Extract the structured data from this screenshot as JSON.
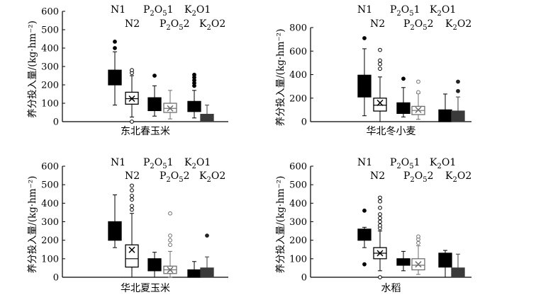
{
  "chart_data": [
    {
      "type": "box",
      "xlabel": "东北春玉米",
      "ylabel": "养分投入量/(kg·hm⁻²)",
      "ylim": [
        0,
        600
      ],
      "yticks": [
        0,
        100,
        200,
        300,
        400,
        500,
        600
      ],
      "grid": false,
      "series_labels": [
        {
          "id": "N1",
          "base": "N",
          "sub": "",
          "suffix": "1"
        },
        {
          "id": "N2",
          "base": "N",
          "sub": "",
          "suffix": "2"
        },
        {
          "id": "P2O51",
          "base": "P",
          "sub": "2",
          "mid": "O",
          "sub2": "5",
          "suffix": "1"
        },
        {
          "id": "P2O52",
          "base": "P",
          "sub": "2",
          "mid": "O",
          "sub2": "5",
          "suffix": "2"
        },
        {
          "id": "K2O1",
          "base": "K",
          "sub": "2",
          "mid": "O",
          "sub2": "",
          "suffix": "1"
        },
        {
          "id": "K2O2",
          "base": "K",
          "sub": "2",
          "mid": "O",
          "sub2": "",
          "suffix": "2"
        }
      ],
      "boxes": [
        {
          "series": "N1",
          "style": "solid-black",
          "q1": 200,
          "median": 225,
          "q3": 280,
          "whisker_low": 90,
          "whisker_high": 380,
          "mean": null,
          "outliers": [
            400,
            435
          ]
        },
        {
          "series": "N2",
          "style": "open",
          "q1": 95,
          "median": 125,
          "q3": 160,
          "whisker_low": 25,
          "whisker_high": 250,
          "mean": 125,
          "outliers": [
            265,
            280,
            0
          ]
        },
        {
          "series": "P2O51",
          "style": "solid-black",
          "q1": 60,
          "median": 90,
          "q3": 130,
          "whisker_low": 30,
          "whisker_high": 195,
          "mean": null,
          "outliers": [
            250
          ]
        },
        {
          "series": "P2O52",
          "style": "open-gray",
          "q1": 50,
          "median": 72,
          "q3": 100,
          "whisker_low": 15,
          "whisker_high": 170,
          "mean": 72,
          "outliers": []
        },
        {
          "series": "K2O1",
          "style": "solid-black",
          "q1": 55,
          "median": 80,
          "q3": 110,
          "whisker_low": 20,
          "whisker_high": 170,
          "mean": null,
          "outliers": [
            195,
            210,
            225,
            240,
            255
          ]
        },
        {
          "series": "K2O2",
          "style": "solid-dark-gray",
          "q1": 0,
          "median": 15,
          "q3": 40,
          "whisker_low": 0,
          "whisker_high": 90,
          "mean": null,
          "outliers": []
        }
      ]
    },
    {
      "type": "box",
      "xlabel": "华北冬小麦",
      "ylabel": "养分投入量/(kg·hm⁻²)",
      "ylim": [
        0,
        800
      ],
      "yticks": [
        0,
        200,
        400,
        600,
        800
      ],
      "grid": false,
      "series_labels": [
        {
          "id": "N1",
          "base": "N",
          "sub": "",
          "suffix": "1"
        },
        {
          "id": "N2",
          "base": "N",
          "sub": "",
          "suffix": "2"
        },
        {
          "id": "P2O51",
          "base": "P",
          "sub": "2",
          "mid": "O",
          "sub2": "5",
          "suffix": "1"
        },
        {
          "id": "P2O52",
          "base": "P",
          "sub": "2",
          "mid": "O",
          "sub2": "5",
          "suffix": "2"
        },
        {
          "id": "K2O1",
          "base": "K",
          "sub": "2",
          "mid": "O",
          "sub2": "",
          "suffix": "1"
        },
        {
          "id": "K2O2",
          "base": "K",
          "sub": "2",
          "mid": "O",
          "sub2": "",
          "suffix": "2"
        }
      ],
      "boxes": [
        {
          "series": "N1",
          "style": "solid-black",
          "q1": 210,
          "median": 290,
          "q3": 395,
          "whisker_low": 50,
          "whisker_high": 620,
          "mean": null,
          "outliers": [
            710
          ]
        },
        {
          "series": "N2",
          "style": "open",
          "q1": 90,
          "median": 140,
          "q3": 200,
          "whisker_low": 0,
          "whisker_high": 380,
          "mean": 160,
          "outliers": [
            450,
            490,
            520,
            610
          ]
        },
        {
          "series": "P2O51",
          "style": "solid-black",
          "q1": 70,
          "median": 105,
          "q3": 160,
          "whisker_low": 40,
          "whisker_high": 290,
          "mean": null,
          "outliers": [
            365
          ]
        },
        {
          "series": "P2O52",
          "style": "open-gray",
          "q1": 60,
          "median": 95,
          "q3": 130,
          "whisker_low": 20,
          "whisker_high": 240,
          "mean": 100,
          "outliers": [
            250,
            340
          ]
        },
        {
          "series": "K2O1",
          "style": "solid-black",
          "q1": 0,
          "median": 40,
          "q3": 100,
          "whisker_low": 0,
          "whisker_high": 235,
          "mean": null,
          "outliers": []
        },
        {
          "series": "K2O2",
          "style": "solid-dark-gray",
          "q1": 0,
          "median": 40,
          "q3": 90,
          "whisker_low": 0,
          "whisker_high": 210,
          "mean": null,
          "outliers": [
            260,
            340
          ]
        }
      ]
    },
    {
      "type": "box",
      "xlabel": "华北夏玉米",
      "ylabel": "养分投入量/(kg·hm⁻²)",
      "ylim": [
        0,
        600
      ],
      "yticks": [
        0,
        100,
        200,
        300,
        400,
        500,
        600
      ],
      "grid": false,
      "series_labels": [
        {
          "id": "N1",
          "base": "N",
          "sub": "",
          "suffix": "1"
        },
        {
          "id": "N2",
          "base": "N",
          "sub": "",
          "suffix": "2"
        },
        {
          "id": "P2O51",
          "base": "P",
          "sub": "2",
          "mid": "O",
          "sub2": "5",
          "suffix": "1"
        },
        {
          "id": "P2O52",
          "base": "P",
          "sub": "2",
          "mid": "O",
          "sub2": "5",
          "suffix": "2"
        },
        {
          "id": "K2O1",
          "base": "K",
          "sub": "2",
          "mid": "O",
          "sub2": "",
          "suffix": "1"
        },
        {
          "id": "K2O2",
          "base": "K",
          "sub": "2",
          "mid": "O",
          "sub2": "",
          "suffix": "2"
        }
      ],
      "boxes": [
        {
          "series": "N1",
          "style": "solid-black",
          "q1": 200,
          "median": 240,
          "q3": 300,
          "whisker_low": 160,
          "whisker_high": 445,
          "mean": null,
          "outliers": []
        },
        {
          "series": "N2",
          "style": "open",
          "q1": 55,
          "median": 100,
          "q3": 175,
          "whisker_low": 0,
          "whisker_high": 345,
          "mean": 148,
          "outliers": [
            365,
            385,
            420,
            440,
            470,
            495
          ]
        },
        {
          "series": "P2O51",
          "style": "solid-black",
          "q1": 35,
          "median": 60,
          "q3": 100,
          "whisker_low": 0,
          "whisker_high": 135,
          "mean": null,
          "outliers": []
        },
        {
          "series": "P2O52",
          "style": "open-gray",
          "q1": 20,
          "median": 40,
          "q3": 60,
          "whisker_low": 0,
          "whisker_high": 140,
          "mean": 40,
          "outliers": [
            175,
            200,
            225,
            345
          ]
        },
        {
          "series": "K2O1",
          "style": "solid-black",
          "q1": 0,
          "median": 15,
          "q3": 40,
          "whisker_low": 0,
          "whisker_high": 85,
          "mean": null,
          "outliers": []
        },
        {
          "series": "K2O2",
          "style": "solid-dark-gray",
          "q1": 0,
          "median": 20,
          "q3": 50,
          "whisker_low": 0,
          "whisker_high": 110,
          "mean": null,
          "outliers": [
            225
          ]
        }
      ]
    },
    {
      "type": "box",
      "xlabel": "水稻",
      "ylabel": "养分投入量/(kg·hm⁻²)",
      "ylim": [
        0,
        600
      ],
      "yticks": [
        0,
        100,
        200,
        300,
        400,
        500,
        600
      ],
      "grid": false,
      "series_labels": [
        {
          "id": "N1",
          "base": "N",
          "sub": "",
          "suffix": "1"
        },
        {
          "id": "N2",
          "base": "N",
          "sub": "",
          "suffix": "2"
        },
        {
          "id": "P2O51",
          "base": "P",
          "sub": "2",
          "mid": "O",
          "sub2": "5",
          "suffix": "1"
        },
        {
          "id": "P2O52",
          "base": "P",
          "sub": "2",
          "mid": "O",
          "sub2": "5",
          "suffix": "2"
        },
        {
          "id": "K2O1",
          "base": "K",
          "sub": "2",
          "mid": "O",
          "sub2": "",
          "suffix": "1"
        },
        {
          "id": "K2O2",
          "base": "K",
          "sub": "2",
          "mid": "O",
          "sub2": "",
          "suffix": "2"
        }
      ],
      "boxes": [
        {
          "series": "N1",
          "style": "solid-black",
          "q1": 200,
          "median": 250,
          "q3": 260,
          "whisker_low": 160,
          "whisker_high": 270,
          "mean": null,
          "outliers": [
            360,
            70
          ]
        },
        {
          "series": "N2",
          "style": "open",
          "q1": 100,
          "median": 130,
          "q3": 160,
          "whisker_low": 35,
          "whisker_high": 250,
          "mean": 130,
          "outliers": [
            265,
            280,
            300,
            320,
            340,
            375,
            410,
            430,
            0
          ]
        },
        {
          "series": "P2O51",
          "style": "solid-black",
          "q1": 65,
          "median": 80,
          "q3": 100,
          "whisker_low": 35,
          "whisker_high": 140,
          "mean": null,
          "outliers": []
        },
        {
          "series": "P2O52",
          "style": "open-gray",
          "q1": 40,
          "median": 65,
          "q3": 100,
          "whisker_low": 15,
          "whisker_high": 170,
          "mean": 70,
          "outliers": [
            185,
            205,
            220
          ]
        },
        {
          "series": "K2O1",
          "style": "solid-black",
          "q1": 55,
          "median": 100,
          "q3": 130,
          "whisker_low": 0,
          "whisker_high": 145,
          "mean": null,
          "outliers": []
        },
        {
          "series": "K2O2",
          "style": "solid-dark-gray",
          "q1": 0,
          "median": 20,
          "q3": 50,
          "whisker_low": 0,
          "whisker_high": 125,
          "mean": null,
          "outliers": []
        }
      ]
    }
  ]
}
